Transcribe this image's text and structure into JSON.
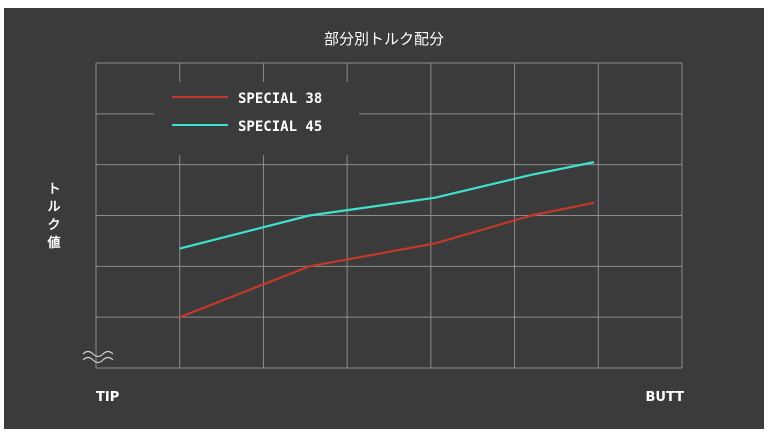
{
  "chart_data": {
    "type": "line",
    "title": "部分別トルク配分",
    "xlabel_left": "TIP",
    "xlabel_right": "BUTT",
    "ylabel_chars": [
      "ト",
      "ル",
      "ク",
      "値"
    ],
    "grid": true,
    "legend_position": "top-left",
    "x_categories": 7,
    "y_range": [
      0,
      6
    ],
    "y_axis_break": true,
    "series": [
      {
        "name": "SPECIAL 38",
        "color": "#c0392b",
        "x": [
          1,
          2.55,
          4.05,
          5.2,
          5.95
        ],
        "y": [
          1.0,
          2.0,
          2.45,
          3.0,
          3.25
        ]
      },
      {
        "name": "SPECIAL 45",
        "color": "#40e0d0",
        "x": [
          1,
          2.55,
          4.05,
          5.2,
          5.95
        ],
        "y": [
          2.35,
          3.0,
          3.35,
          3.8,
          4.05
        ]
      }
    ]
  }
}
